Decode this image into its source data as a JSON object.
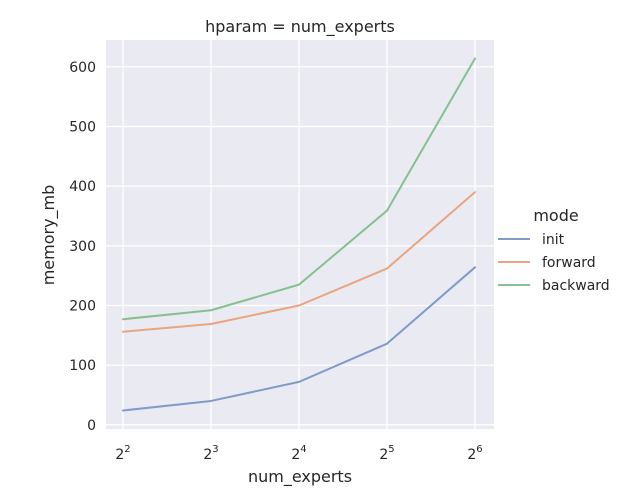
{
  "chart_data": {
    "type": "line",
    "title": "hparam = num_experts",
    "xlabel": "num_experts",
    "ylabel": "memory_mb",
    "x_scale": "log2",
    "x": [
      4,
      8,
      16,
      32,
      64
    ],
    "x_tick_labels": [
      {
        "base": "2",
        "exp": "2"
      },
      {
        "base": "2",
        "exp": "3"
      },
      {
        "base": "2",
        "exp": "4"
      },
      {
        "base": "2",
        "exp": "5"
      },
      {
        "base": "2",
        "exp": "6"
      }
    ],
    "y_ticks": [
      0,
      100,
      200,
      300,
      400,
      500,
      600
    ],
    "ylim": [
      -7,
      645
    ],
    "grid": true,
    "legend": {
      "title": "mode",
      "placement": "right"
    },
    "series": [
      {
        "name": "init",
        "color": "#7f9bc9",
        "values": [
          24,
          40,
          72,
          136,
          264
        ]
      },
      {
        "name": "forward",
        "color": "#e9a57f",
        "values": [
          156,
          169,
          200,
          262,
          390
        ]
      },
      {
        "name": "backward",
        "color": "#85c18f",
        "values": [
          177,
          192,
          235,
          359,
          614
        ]
      }
    ]
  }
}
